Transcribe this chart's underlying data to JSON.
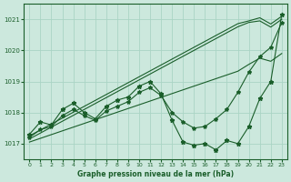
{
  "title": "Graphe pression niveau de la mer (hPa)",
  "bg_color": "#cce8dd",
  "grid_color": "#aad4c4",
  "line_color": "#1a5e2a",
  "xlim": [
    -0.5,
    23.5
  ],
  "ylim": [
    1016.5,
    1021.5
  ],
  "yticks": [
    1017,
    1018,
    1019,
    1020,
    1021
  ],
  "xticks": [
    0,
    1,
    2,
    3,
    4,
    5,
    6,
    7,
    8,
    9,
    10,
    11,
    12,
    13,
    14,
    15,
    16,
    17,
    18,
    19,
    20,
    21,
    22,
    23
  ],
  "trend_upper": [
    1017.25,
    1017.44,
    1017.63,
    1017.82,
    1018.01,
    1018.2,
    1018.39,
    1018.58,
    1018.77,
    1018.96,
    1019.15,
    1019.34,
    1019.53,
    1019.72,
    1019.91,
    1020.1,
    1020.29,
    1020.48,
    1020.67,
    1020.86,
    1020.95,
    1021.05,
    1020.85,
    1021.1
  ],
  "trend_upper2": [
    1017.15,
    1017.34,
    1017.53,
    1017.72,
    1017.91,
    1018.1,
    1018.29,
    1018.48,
    1018.67,
    1018.86,
    1019.05,
    1019.24,
    1019.43,
    1019.62,
    1019.81,
    1020.0,
    1020.19,
    1020.38,
    1020.57,
    1020.76,
    1020.9,
    1020.95,
    1020.75,
    1021.0
  ],
  "trend_lower": [
    1017.05,
    1017.17,
    1017.29,
    1017.41,
    1017.53,
    1017.65,
    1017.77,
    1017.89,
    1018.01,
    1018.13,
    1018.25,
    1018.37,
    1018.49,
    1018.61,
    1018.73,
    1018.85,
    1018.97,
    1019.09,
    1019.21,
    1019.33,
    1019.55,
    1019.75,
    1019.65,
    1019.9
  ],
  "jagged": [
    1017.3,
    1017.7,
    1017.6,
    1018.1,
    1018.3,
    1018.0,
    1017.8,
    1018.2,
    1018.4,
    1018.5,
    1018.85,
    1019.0,
    1018.6,
    1017.75,
    1017.05,
    1016.95,
    1017.0,
    1016.8,
    1017.1,
    1017.0,
    1017.55,
    1018.45,
    1019.0,
    1021.15
  ],
  "smooth": [
    1017.2,
    1017.45,
    1017.55,
    1017.9,
    1018.1,
    1017.9,
    1017.75,
    1018.05,
    1018.2,
    1018.35,
    1018.65,
    1018.8,
    1018.55,
    1018.0,
    1017.7,
    1017.5,
    1017.55,
    1017.8,
    1018.1,
    1018.65,
    1019.3,
    1019.8,
    1020.1,
    1020.9
  ]
}
